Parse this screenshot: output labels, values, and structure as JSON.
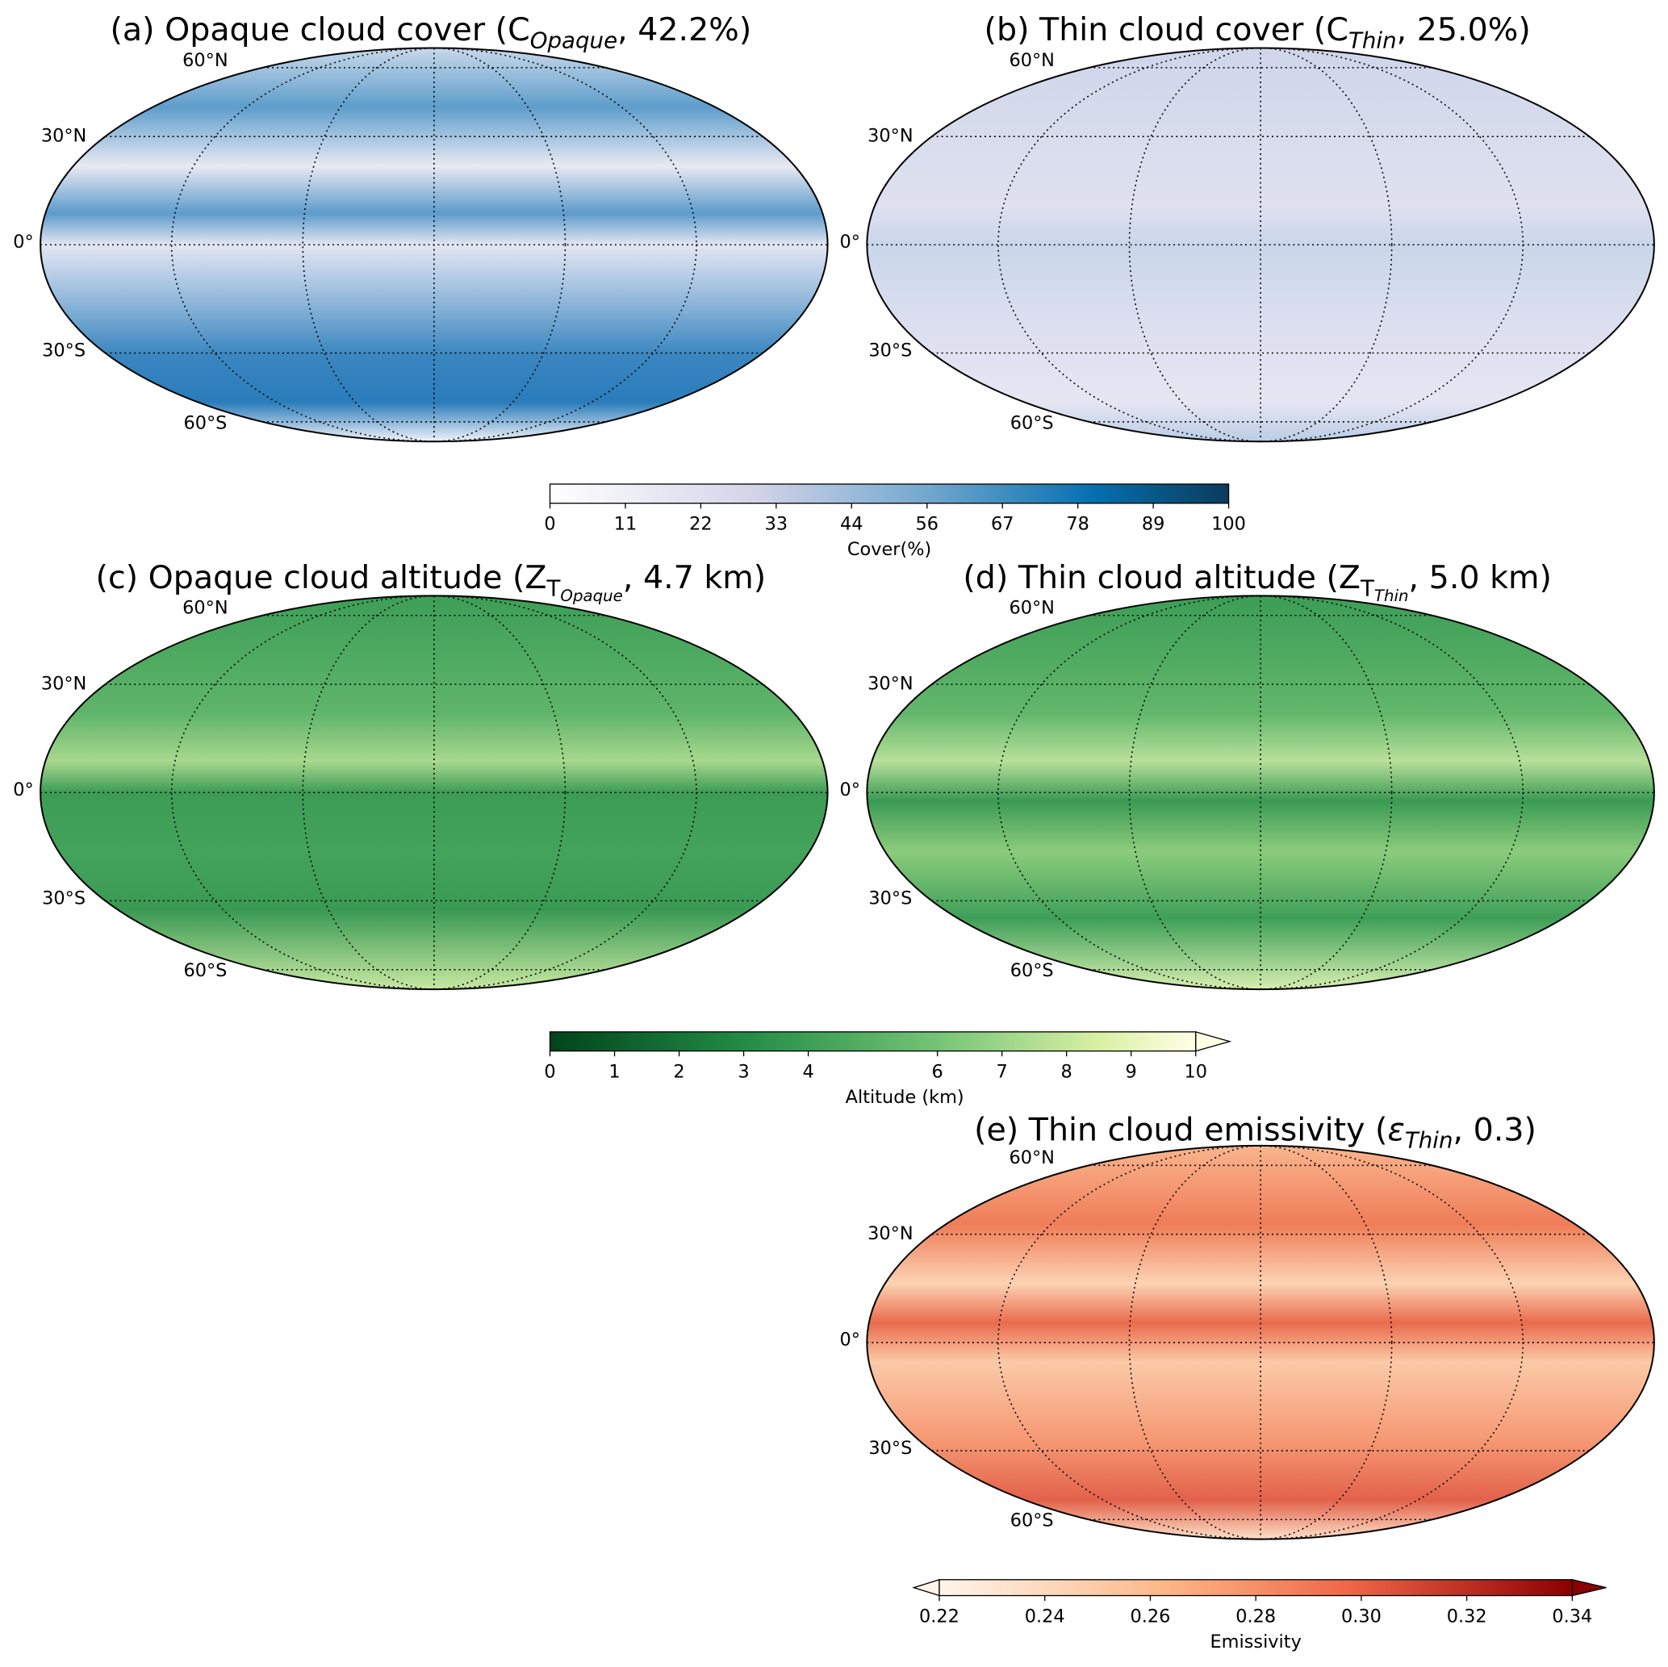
{
  "panels": [
    {
      "title": [
        "(a) Opaque cloud cover (C",
        "Opaque",
        ", 42.2%)"
      ],
      "lat_labels": [
        "60°N",
        "30°N",
        "0°",
        "30°S",
        "60°S"
      ]
    },
    {
      "title": [
        "(b) Thin cloud cover (C",
        "Thin",
        ", 25.0%)"
      ],
      "lat_labels": [
        "60°N",
        "30°N",
        "0°",
        "30°S",
        "60°S"
      ]
    },
    {
      "title": [
        "(c) Opaque cloud altitude (Z",
        "T",
        "Opaque",
        ", 4.7 km)"
      ],
      "lat_labels": [
        "60°N",
        "30°N",
        "0°",
        "30°S",
        "60°S"
      ]
    },
    {
      "title": [
        "(d) Thin cloud altitude (Z",
        "T",
        "Thin",
        ", 5.0 km)"
      ],
      "lat_labels": [
        "60°N",
        "30°N",
        "0°",
        "30°S",
        "60°S"
      ]
    },
    {
      "title": [
        "(e) Thin cloud emissivity (",
        "ε",
        "Thin",
        ", 0.3)"
      ],
      "lat_labels": [
        "60°N",
        "30°N",
        "0°",
        "30°S",
        "60°S"
      ]
    }
  ],
  "colorbars": [
    {
      "label": "Cover(%)",
      "xlim": [
        0,
        100
      ],
      "extend": "neither",
      "ticks": [
        0,
        {
          "value": 11.11,
          "label": "11"
        },
        {
          "value": 22.22,
          "label": "22"
        },
        {
          "value": 33.33,
          "label": "33"
        },
        {
          "value": 44.44,
          "label": "44"
        },
        {
          "value": 55.56,
          "label": "56"
        },
        {
          "value": 66.67,
          "label": "67"
        },
        {
          "value": 77.78,
          "label": "78"
        },
        {
          "value": 88.89,
          "label": "89"
        },
        100
      ]
    },
    {
      "label": "Altitude (km)",
      "xlim": [
        0,
        10
      ],
      "extend": "max",
      "ticks": [
        0,
        1,
        2,
        3,
        4,
        6,
        7,
        8,
        9,
        10
      ]
    },
    {
      "label": "Emissivity",
      "xlim": [
        0.22,
        0.34
      ],
      "extend": "both",
      "ticks": [
        0.22,
        0.24,
        0.26,
        0.28,
        {
          "value": 0.3,
          "label": "0.30"
        },
        0.32,
        0.34
      ]
    }
  ]
}
